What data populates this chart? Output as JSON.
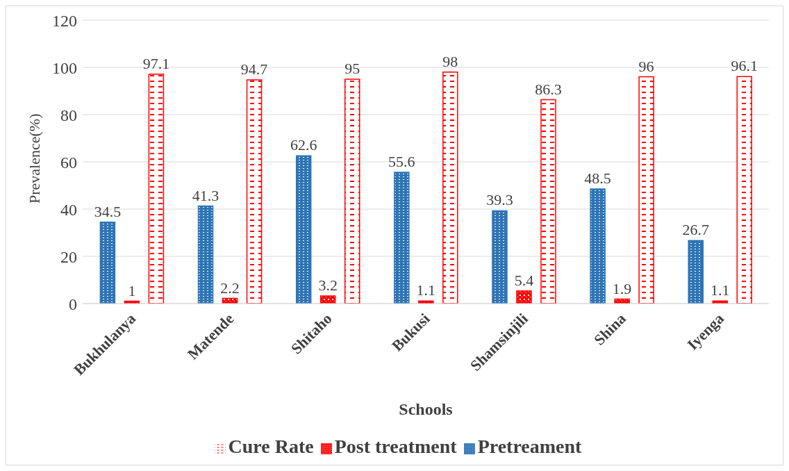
{
  "chart_data": {
    "type": "bar",
    "xlabel": "Schools",
    "ylabel": "Prevalence(%)",
    "categories": [
      "Bukhulanya",
      "Matende",
      "Shitaho",
      "Bukusi",
      "Shamsinjili",
      "Shina",
      "Iyenga"
    ],
    "series": [
      {
        "name": "Pretreament",
        "color": "#2e75b6",
        "values": [
          34.5,
          41.3,
          62.6,
          55.6,
          39.3,
          48.5,
          26.7
        ]
      },
      {
        "name": "Post treatment",
        "color": "#ff0000",
        "values": [
          1,
          2.2,
          3.2,
          1.1,
          5.4,
          1.9,
          1.1
        ]
      },
      {
        "name": "Cure Rate",
        "color": "#ff0000",
        "values": [
          97.1,
          94.7,
          95,
          98,
          86.3,
          96,
          96.1
        ]
      }
    ],
    "ylim": [
      0,
      120
    ],
    "yticks": [
      0,
      20,
      40,
      60,
      80,
      100,
      120
    ],
    "grid": "y",
    "legend": "bottom",
    "data_labels": true
  }
}
